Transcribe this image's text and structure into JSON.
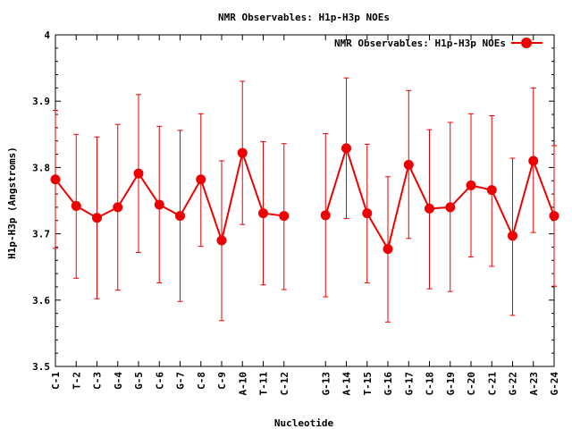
{
  "chart_data": {
    "type": "line",
    "title": "NMR Observables: H1p-H3p NOEs",
    "xlabel": "Nucleotide",
    "ylabel": "H1p-H3p (Angstroms)",
    "ylim": [
      3.5,
      4.0
    ],
    "yticks": [
      "3.5",
      "3.6",
      "3.7",
      "3.8",
      "3.9",
      "4"
    ],
    "legend": {
      "label": "NMR Observables: H1p-H3p NOEs",
      "placement": "top-right"
    },
    "colors": {
      "series": "#ee0000",
      "axis": "#000000"
    },
    "categories": [
      "C-1",
      "T-2",
      "C-3",
      "G-4",
      "G-5",
      "C-6",
      "G-7",
      "C-8",
      "C-9",
      "A-10",
      "T-11",
      "C-12",
      "G-13",
      "A-14",
      "T-15",
      "G-16",
      "G-17",
      "C-18",
      "G-19",
      "C-20",
      "C-21",
      "G-22",
      "A-23",
      "G-24"
    ],
    "x": [
      1,
      2,
      3,
      4,
      5,
      6,
      7,
      8,
      9,
      10,
      11,
      12,
      14,
      15,
      16,
      17,
      18,
      19,
      20,
      21,
      22,
      23,
      24,
      25
    ],
    "series": [
      {
        "values": [
          3.782,
          3.742,
          3.724,
          3.74,
          3.791,
          3.744,
          3.727,
          3.782,
          3.69,
          3.822,
          3.731,
          3.727,
          3.728,
          3.829,
          3.731,
          3.677,
          3.804,
          3.738,
          3.74,
          3.773,
          3.766,
          3.697,
          3.81,
          3.727
        ],
        "err_low": [
          3.678,
          3.633,
          3.602,
          3.615,
          3.672,
          3.626,
          3.598,
          3.681,
          3.569,
          3.714,
          3.623,
          3.616,
          3.605,
          3.723,
          3.626,
          3.567,
          3.693,
          3.617,
          3.613,
          3.665,
          3.651,
          3.577,
          3.702,
          3.621
        ],
        "err_high": [
          3.886,
          3.85,
          3.846,
          3.865,
          3.91,
          3.862,
          3.856,
          3.881,
          3.81,
          3.93,
          3.839,
          3.836,
          3.851,
          3.935,
          3.835,
          3.786,
          3.916,
          3.857,
          3.868,
          3.881,
          3.878,
          3.814,
          3.92,
          3.833
        ]
      }
    ]
  }
}
